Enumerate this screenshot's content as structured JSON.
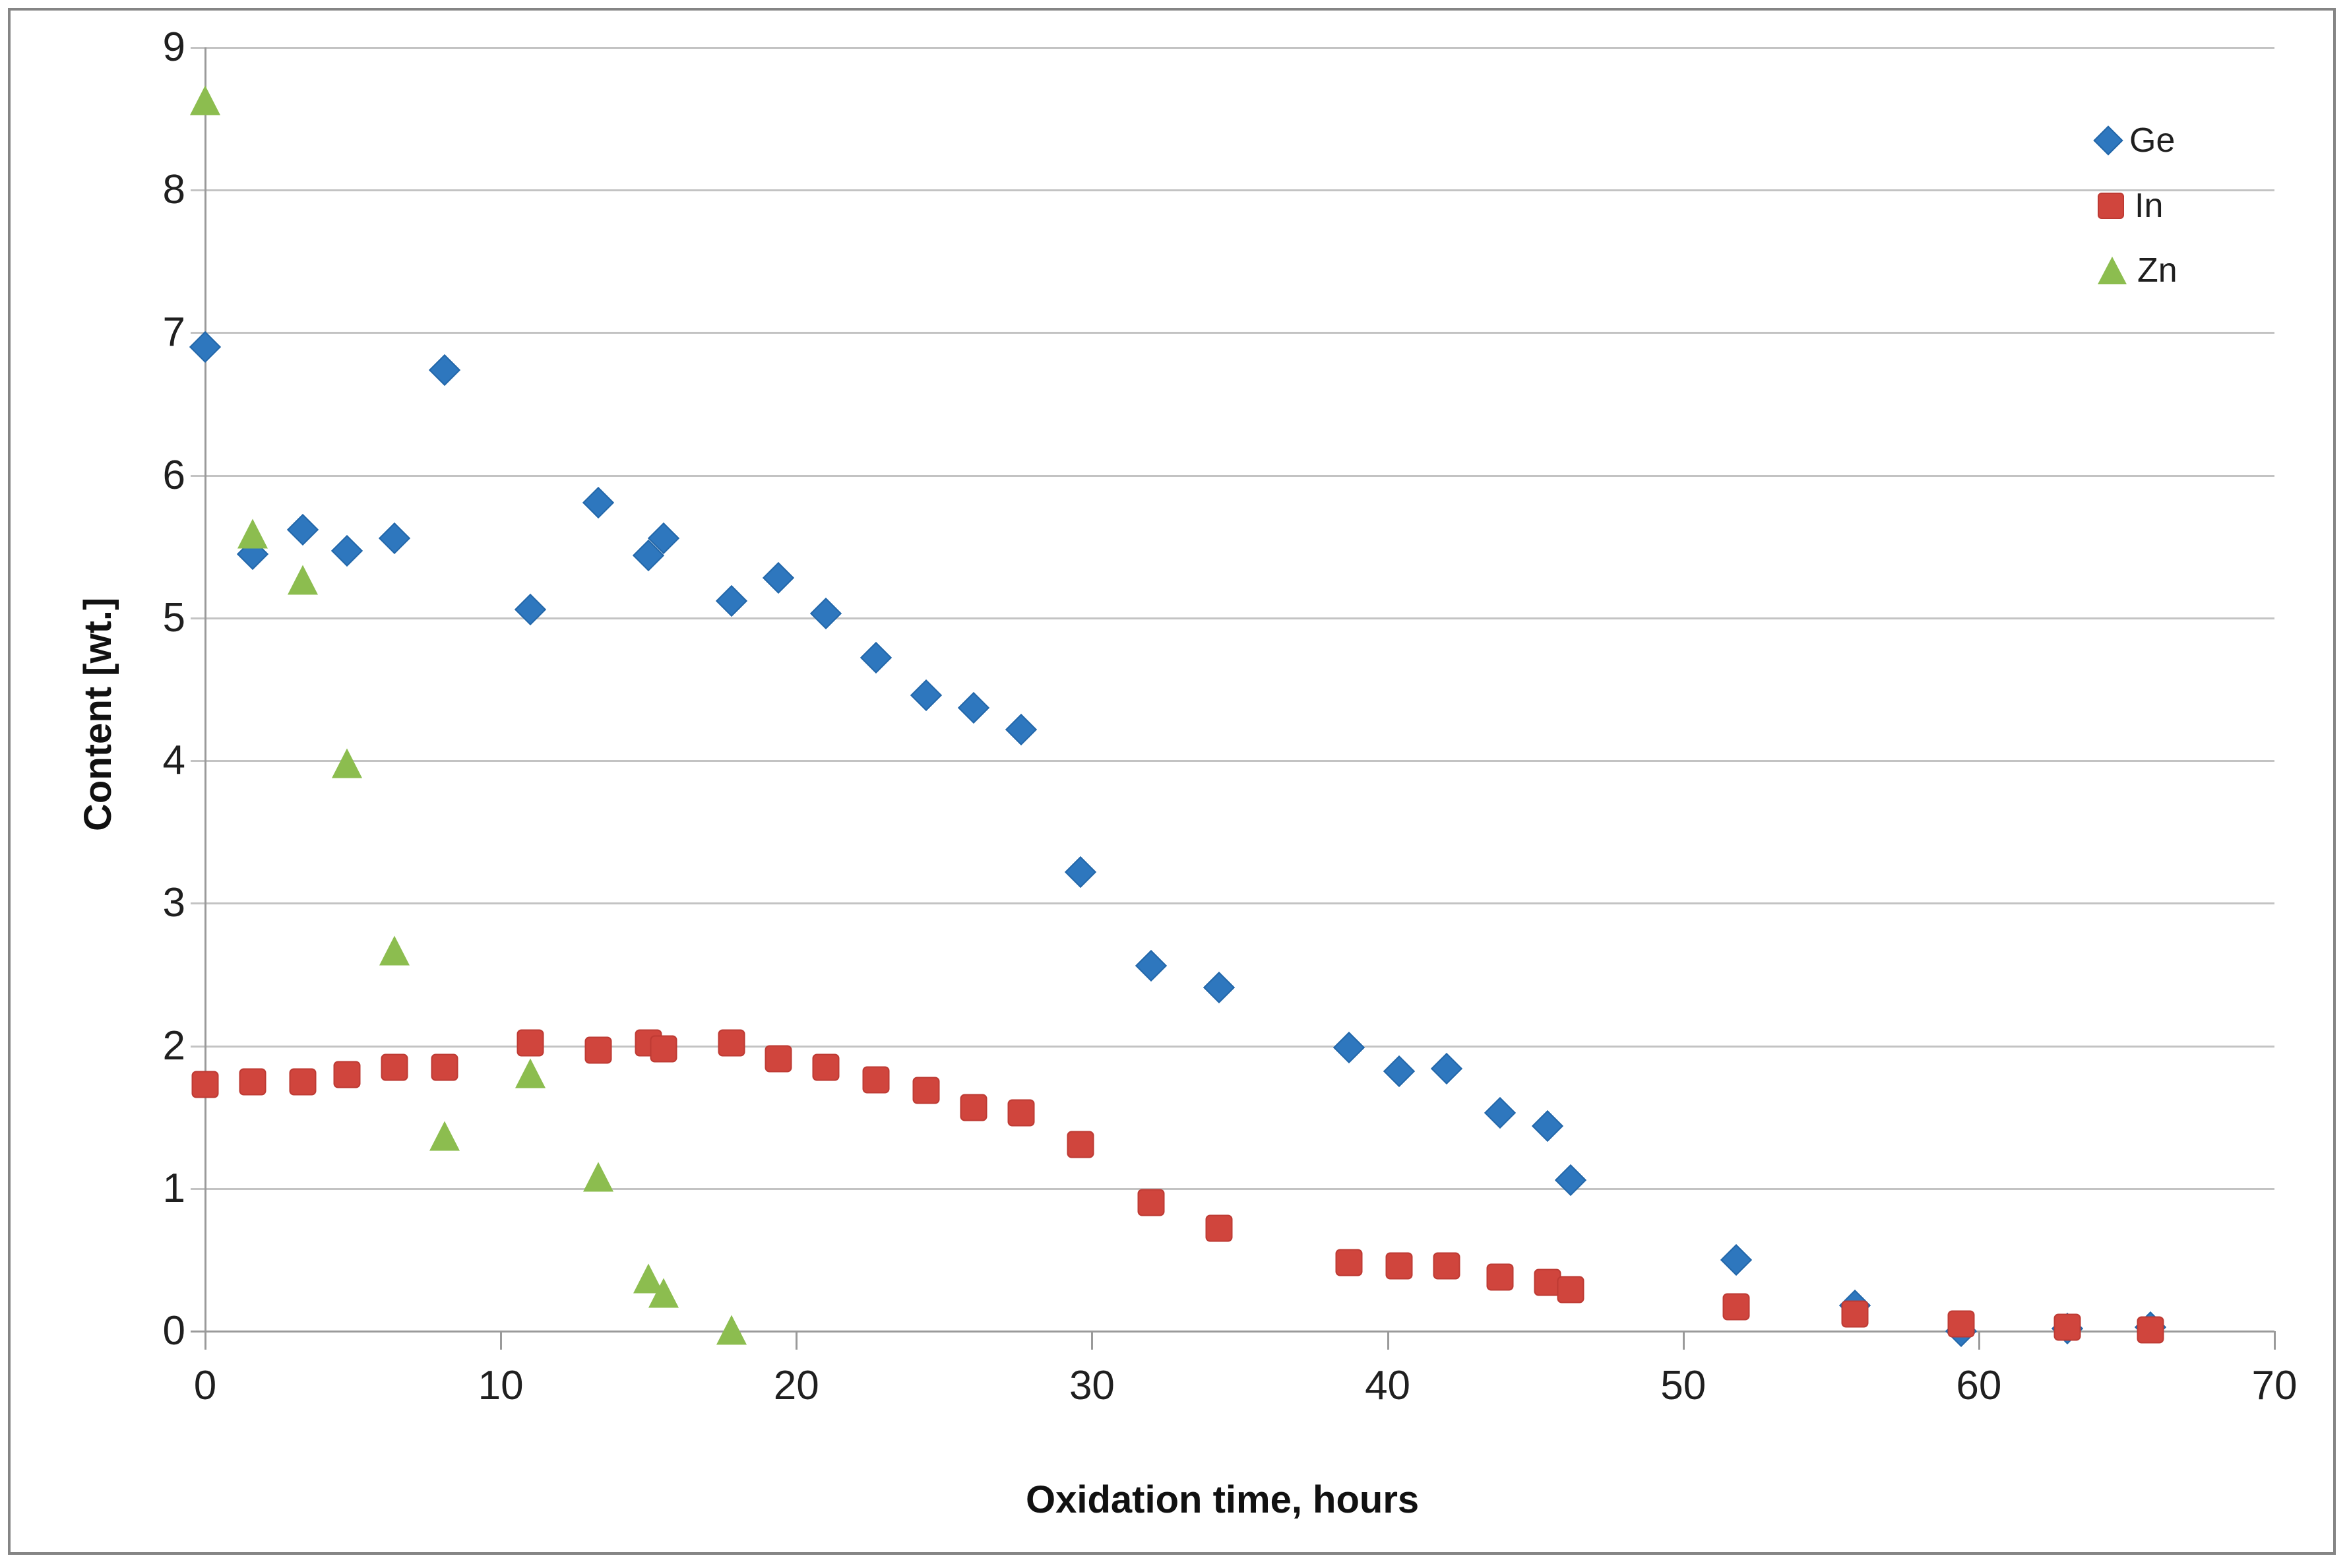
{
  "chart_data": {
    "type": "scatter",
    "title": "",
    "xlabel": "Oxidation time, hours",
    "ylabel": "Content [wt.]",
    "xlim": [
      0,
      70
    ],
    "ylim": [
      0,
      9
    ],
    "x_ticks": [
      0,
      10,
      20,
      30,
      40,
      50,
      60,
      70
    ],
    "y_ticks": [
      0,
      1,
      2,
      3,
      4,
      5,
      6,
      7,
      8,
      9
    ],
    "grid": "horizontal gridlines only",
    "legend_position": "inside top right",
    "series": [
      {
        "name": "Ge",
        "marker": "diamond",
        "color": "#2e77be",
        "edge_color": "#2367a9",
        "points": [
          [
            0,
            6.9
          ],
          [
            1.6,
            5.45
          ],
          [
            3.3,
            5.62
          ],
          [
            4.8,
            5.47
          ],
          [
            6.4,
            5.56
          ],
          [
            8.1,
            6.74
          ],
          [
            11,
            5.06
          ],
          [
            13.3,
            5.81
          ],
          [
            15,
            5.44
          ],
          [
            15.5,
            5.56
          ],
          [
            17.8,
            5.12
          ],
          [
            19.4,
            5.28
          ],
          [
            21,
            5.03
          ],
          [
            22.7,
            4.72
          ],
          [
            24.4,
            4.46
          ],
          [
            26,
            4.37
          ],
          [
            27.6,
            4.22
          ],
          [
            29.6,
            3.22
          ],
          [
            32,
            2.56
          ],
          [
            34.3,
            2.41
          ],
          [
            38.7,
            1.99
          ],
          [
            40.4,
            1.82
          ],
          [
            42,
            1.84
          ],
          [
            43.8,
            1.53
          ],
          [
            45.4,
            1.44
          ],
          [
            46.2,
            1.06
          ],
          [
            51.8,
            0.5
          ],
          [
            55.8,
            0.18
          ],
          [
            59.4,
            0.0
          ],
          [
            63,
            0.02
          ],
          [
            65.8,
            0.03
          ]
        ]
      },
      {
        "name": "In",
        "marker": "square",
        "color": "#d0453d",
        "edge_color": "#be3a33",
        "points": [
          [
            0,
            1.73
          ],
          [
            1.6,
            1.75
          ],
          [
            3.3,
            1.75
          ],
          [
            4.8,
            1.8
          ],
          [
            6.4,
            1.85
          ],
          [
            8.1,
            1.85
          ],
          [
            11,
            2.02
          ],
          [
            13.3,
            1.97
          ],
          [
            15,
            2.02
          ],
          [
            15.5,
            1.98
          ],
          [
            17.8,
            2.02
          ],
          [
            19.4,
            1.91
          ],
          [
            21,
            1.85
          ],
          [
            22.7,
            1.76
          ],
          [
            24.4,
            1.69
          ],
          [
            26,
            1.57
          ],
          [
            27.6,
            1.53
          ],
          [
            29.6,
            1.31
          ],
          [
            32,
            0.9
          ],
          [
            34.3,
            0.72
          ],
          [
            38.7,
            0.48
          ],
          [
            40.4,
            0.46
          ],
          [
            42,
            0.46
          ],
          [
            43.8,
            0.38
          ],
          [
            45.4,
            0.34
          ],
          [
            46.2,
            0.29
          ],
          [
            51.8,
            0.17
          ],
          [
            55.8,
            0.12
          ],
          [
            59.4,
            0.05
          ],
          [
            63,
            0.03
          ],
          [
            65.8,
            0.01
          ]
        ]
      },
      {
        "name": "Zn",
        "marker": "triangle",
        "color": "#8cbd4f",
        "edge_color": "#7dad41",
        "points": [
          [
            0,
            8.63
          ],
          [
            1.6,
            5.59
          ],
          [
            3.3,
            5.27
          ],
          [
            4.8,
            3.98
          ],
          [
            6.4,
            2.67
          ],
          [
            8.1,
            1.37
          ],
          [
            11,
            1.81
          ],
          [
            13.3,
            1.08
          ],
          [
            15,
            0.37
          ],
          [
            15.5,
            0.27
          ],
          [
            17.8,
            0.01
          ]
        ]
      }
    ],
    "colors": {
      "gridline": "#c3c3c3",
      "axis_line": "#9a9a9a",
      "tick_text": "#1f1f1f",
      "frame_border": "#858585",
      "background": "#ffffff"
    }
  }
}
